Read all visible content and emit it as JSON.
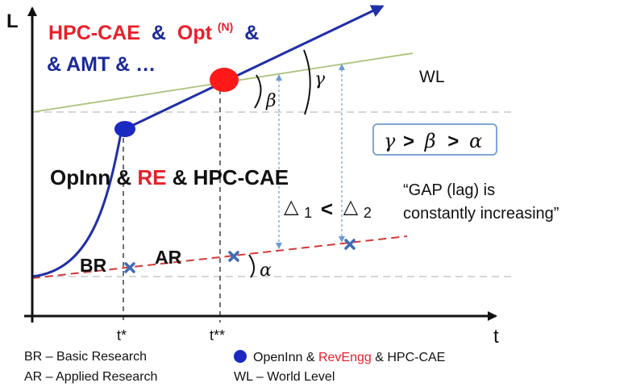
{
  "axes": {
    "y_label": "L",
    "x_label": "t",
    "tick_t_star": "t*",
    "tick_t_double_star": "t**"
  },
  "title": {
    "line1_red": "HPC-CAE",
    "line1_amp1": "&",
    "line1_opt": "Opt",
    "line1_sup": "(N)",
    "line1_amp2": "&",
    "line2": "& AMT & …"
  },
  "labels": {
    "wl": "WL",
    "opinn_prefix": "OpInn & ",
    "opinn_re": "RE",
    "opinn_suffix": " & HPC-CAE",
    "br": "BR",
    "ar": "AR",
    "gap_line1": "“GAP (lag) is",
    "gap_line2": "constantly increasing”"
  },
  "angles": {
    "gamma": "γ",
    "beta": "β",
    "alpha": "α",
    "relation_gamma": "γ",
    "relation_gt1": ">",
    "relation_beta": "β",
    "relation_gt2": ">",
    "relation_alpha": "α"
  },
  "deltas": {
    "delta_symbol": "△",
    "delta1_sub": "1",
    "less_than": "<",
    "delta2_sub": "2"
  },
  "legend": {
    "br_def": "BR – Basic Research",
    "ar_def": "AR – Applied Research",
    "dot_prefix": "OpenInn & ",
    "dot_revengg": "RevEngg",
    "dot_suffix": " & HPC-CAE",
    "wl_def": "WL – World Level"
  },
  "colors": {
    "blue_curve": "#1f2fa8",
    "red_text": "#e8202a",
    "dark_blue_text": "#1a2a9a",
    "world_level": "#a8c37a",
    "research_line": "#d23a3a",
    "marker": "#3f6bb5",
    "gap_arrows": "#6a9bd4"
  }
}
